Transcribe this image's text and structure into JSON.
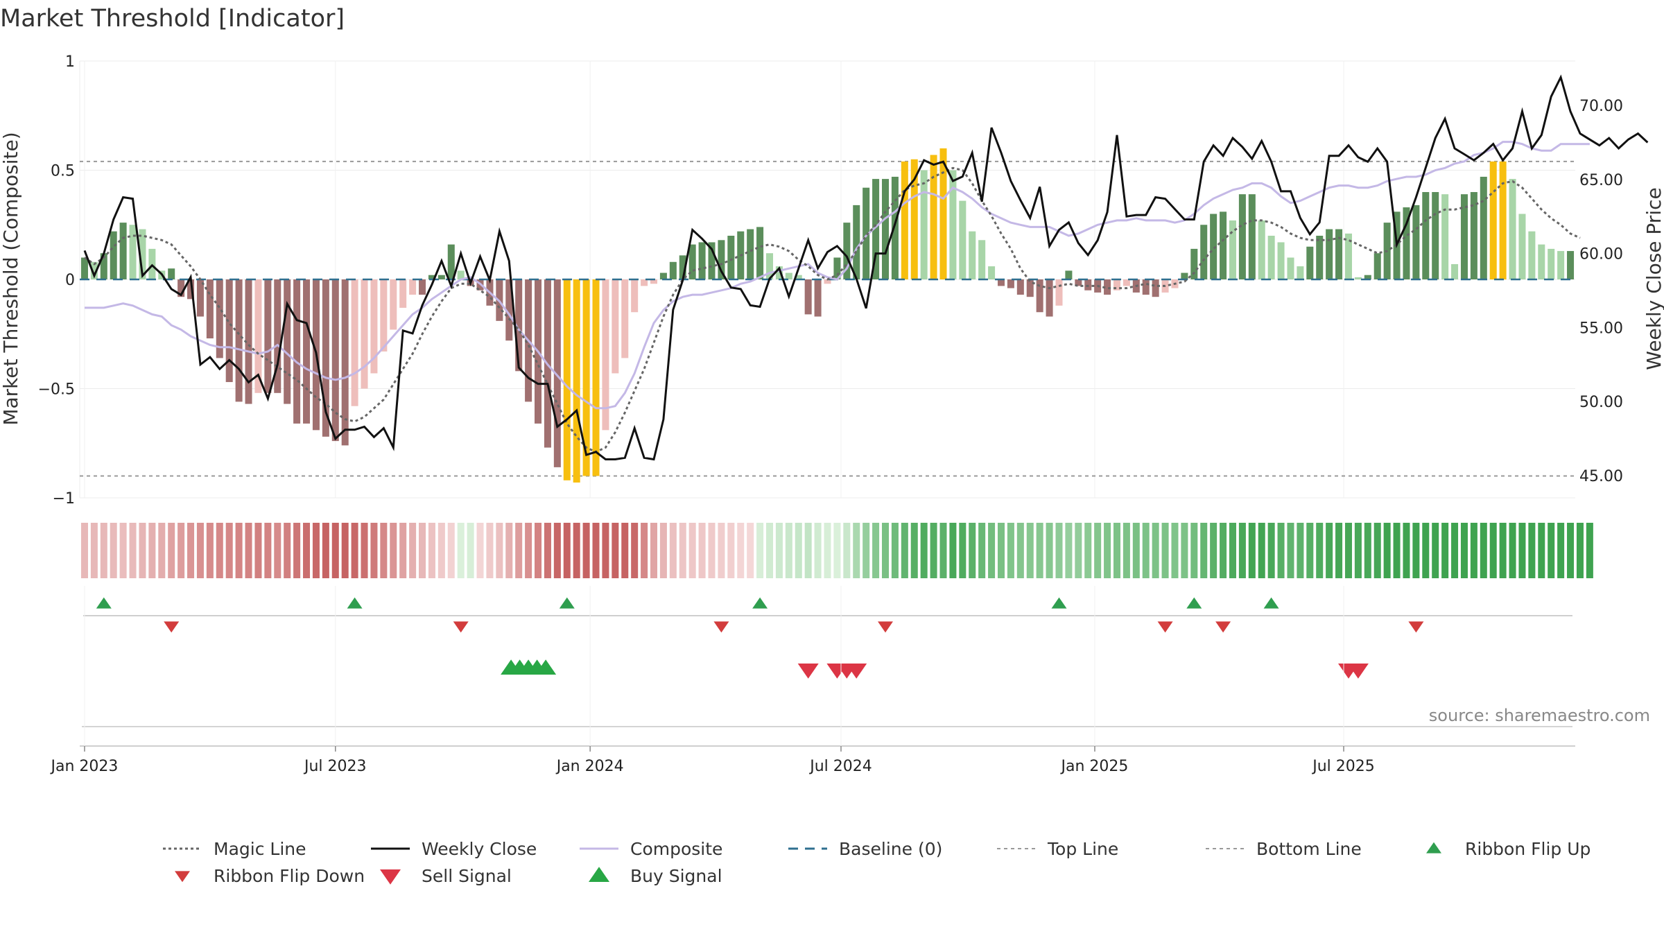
{
  "chart_data": {
    "type": "bar",
    "title": "Market Threshold [Indicator]",
    "ylabel_left": "Market Threshold (Composite)",
    "ylabel_right": "Weekly Close Price",
    "ylim_left": [
      -1,
      1
    ],
    "ylim_right": [
      43.5,
      73
    ],
    "left_ticks": [
      {
        "v": 1,
        "label": "1"
      },
      {
        "v": 0.5,
        "label": "0.5"
      },
      {
        "v": 0,
        "label": "0"
      },
      {
        "v": -0.5,
        "label": "−0.5"
      },
      {
        "v": -1,
        "label": "−1"
      }
    ],
    "right_ticks": [
      {
        "v": 70,
        "label": "70.00"
      },
      {
        "v": 65,
        "label": "65.00"
      },
      {
        "v": 60,
        "label": "60.00"
      },
      {
        "v": 55,
        "label": "55.00"
      },
      {
        "v": 50,
        "label": "50.00"
      },
      {
        "v": 45,
        "label": "45.00"
      }
    ],
    "x_ticks": [
      {
        "week": 0,
        "label": "Jan 2023"
      },
      {
        "week": 26,
        "label": "Jul 2023"
      },
      {
        "week": 52.4,
        "label": "Jan 2024"
      },
      {
        "week": 78.4,
        "label": "Jul 2024"
      },
      {
        "week": 104.7,
        "label": "Jan 2025"
      },
      {
        "week": 130.5,
        "label": "Jul 2025"
      }
    ],
    "top_line": 0.54,
    "bottom_line": -0.9,
    "composite_bars": [
      0.1,
      0.08,
      0.12,
      0.22,
      0.26,
      0.25,
      0.23,
      0.14,
      0.04,
      0.05,
      -0.08,
      -0.09,
      -0.17,
      -0.27,
      -0.36,
      -0.47,
      -0.56,
      -0.57,
      -0.52,
      -0.52,
      -0.52,
      -0.57,
      -0.66,
      -0.66,
      -0.69,
      -0.72,
      -0.74,
      -0.76,
      -0.58,
      -0.5,
      -0.43,
      -0.33,
      -0.23,
      -0.13,
      -0.07,
      -0.07,
      0.02,
      0.02,
      0.16,
      0.04,
      -0.03,
      -0.05,
      -0.12,
      -0.19,
      -0.28,
      -0.42,
      -0.56,
      -0.66,
      -0.77,
      -0.86,
      -0.92,
      -0.93,
      -0.9,
      -0.9,
      -0.69,
      -0.43,
      -0.36,
      -0.15,
      -0.03,
      -0.02,
      0.03,
      0.08,
      0.11,
      0.16,
      0.17,
      0.17,
      0.18,
      0.2,
      0.22,
      0.23,
      0.24,
      0.12,
      0.06,
      0.03,
      0.02,
      -0.16,
      -0.17,
      -0.02,
      0.1,
      0.26,
      0.34,
      0.42,
      0.46,
      0.46,
      0.47,
      0.54,
      0.55,
      0.5,
      0.57,
      0.6,
      0.5,
      0.36,
      0.22,
      0.18,
      0.06,
      -0.03,
      -0.04,
      -0.07,
      -0.08,
      -0.15,
      -0.17,
      -0.12,
      0.04,
      -0.03,
      -0.05,
      -0.06,
      -0.07,
      -0.05,
      -0.03,
      -0.06,
      -0.07,
      -0.08,
      -0.06,
      -0.04,
      0.03,
      0.14,
      0.25,
      0.3,
      0.31,
      0.27,
      0.39,
      0.39,
      0.27,
      0.2,
      0.17,
      0.1,
      0.06,
      0.15,
      0.2,
      0.23,
      0.23,
      0.21,
      0.01,
      0.02,
      0.12,
      0.26,
      0.31,
      0.33,
      0.34,
      0.4,
      0.4,
      0.39,
      0.07,
      0.39,
      0.4,
      0.47,
      0.54,
      0.54,
      0.46,
      0.3,
      0.22,
      0.16,
      0.14,
      0.13,
      0.13
    ],
    "weekly_close": [
      60.2,
      58.5,
      60,
      62.3,
      63.8,
      63.7,
      58.5,
      59.2,
      58.6,
      57.6,
      57.2,
      58.4,
      52.5,
      53,
      52.2,
      52.8,
      52.2,
      51.3,
      51.8,
      50.2,
      52.5,
      56.6,
      55.5,
      55.3,
      53.3,
      49.3,
      47.5,
      48.1,
      48.1,
      48.3,
      47.6,
      48.2,
      46.9,
      54.8,
      54.6,
      56.5,
      57.9,
      59.5,
      57.8,
      60,
      58,
      59.8,
      58.2,
      61.5,
      59.5,
      52.3,
      51.6,
      51.2,
      51.2,
      48.3,
      48.8,
      49.4,
      46.4,
      46.6,
      46.1,
      46.1,
      46.2,
      48.2,
      46.2,
      46.1,
      48.8,
      56.2,
      58.2,
      61.6,
      61,
      60.3,
      58.8,
      57.7,
      57.6,
      56.5,
      56.4,
      58.3,
      59,
      57.1,
      59,
      60.9,
      59,
      60.1,
      60.5,
      59.8,
      58.3,
      56.3,
      60,
      60,
      62,
      64.2,
      65,
      66.3,
      66,
      66.2,
      64.9,
      65.2,
      66.8,
      63.5,
      68.5,
      66.8,
      64.9,
      63.6,
      62.4,
      64.5,
      60.5,
      61.6,
      62.1,
      60.7,
      59.9,
      60.9,
      62.8,
      68,
      62.5,
      62.6,
      62.6,
      63.8,
      63.7,
      63,
      62.3,
      62.3,
      66.2,
      67.3,
      66.6,
      67.8,
      67.2,
      66.4,
      67.6,
      66.2,
      64.2,
      64.2,
      62.4,
      61.3,
      62.1,
      66.6,
      66.6,
      67.3,
      66.5,
      66.2,
      67.1,
      66.2,
      60.6,
      62,
      63.8,
      65.8,
      67.8,
      69.1,
      67.1,
      66.7,
      66.3,
      66.8,
      67.4,
      66.3,
      67.1,
      69.6,
      67.1,
      68,
      70.6,
      71.9,
      69.6,
      68.1,
      67.7,
      67.3,
      67.8,
      67.1,
      67.7,
      68.1,
      67.5
    ],
    "composite_line": [
      -0.13,
      -0.13,
      -0.13,
      -0.12,
      -0.11,
      -0.12,
      -0.14,
      -0.16,
      -0.17,
      -0.21,
      -0.23,
      -0.26,
      -0.28,
      -0.3,
      -0.31,
      -0.31,
      -0.32,
      -0.33,
      -0.34,
      -0.33,
      -0.3,
      -0.34,
      -0.38,
      -0.41,
      -0.43,
      -0.45,
      -0.46,
      -0.45,
      -0.43,
      -0.4,
      -0.36,
      -0.31,
      -0.26,
      -0.21,
      -0.16,
      -0.13,
      -0.09,
      -0.06,
      -0.03,
      0,
      0.01,
      -0.02,
      -0.06,
      -0.1,
      -0.16,
      -0.23,
      -0.28,
      -0.33,
      -0.39,
      -0.44,
      -0.49,
      -0.53,
      -0.56,
      -0.59,
      -0.59,
      -0.58,
      -0.52,
      -0.43,
      -0.31,
      -0.2,
      -0.14,
      -0.1,
      -0.08,
      -0.07,
      -0.07,
      -0.06,
      -0.05,
      -0.04,
      -0.02,
      -0.01,
      0.01,
      0.03,
      0.04,
      0.05,
      0.06,
      0.07,
      0.03,
      0.01,
      0,
      0.05,
      0.14,
      0.2,
      0.24,
      0.28,
      0.31,
      0.35,
      0.38,
      0.4,
      0.39,
      0.37,
      0.42,
      0.4,
      0.37,
      0.33,
      0.3,
      0.28,
      0.26,
      0.25,
      0.24,
      0.24,
      0.24,
      0.22,
      0.2,
      0.21,
      0.23,
      0.25,
      0.26,
      0.27,
      0.27,
      0.28,
      0.27,
      0.27,
      0.27,
      0.26,
      0.27,
      0.3,
      0.34,
      0.37,
      0.39,
      0.41,
      0.42,
      0.44,
      0.44,
      0.42,
      0.38,
      0.35,
      0.36,
      0.38,
      0.4,
      0.42,
      0.43,
      0.43,
      0.42,
      0.42,
      0.43,
      0.45,
      0.46,
      0.47,
      0.47,
      0.48,
      0.5,
      0.51,
      0.53,
      0.54,
      0.57,
      0.58,
      0.6,
      0.63,
      0.63,
      0.62,
      0.6,
      0.59,
      0.59,
      0.62,
      0.62,
      0.62,
      0.62
    ],
    "magic_line": [
      0.1,
      0.07,
      0.1,
      0.15,
      0.19,
      0.2,
      0.2,
      0.19,
      0.18,
      0.16,
      0.11,
      0.06,
      0,
      -0.07,
      -0.13,
      -0.2,
      -0.25,
      -0.3,
      -0.34,
      -0.37,
      -0.4,
      -0.43,
      -0.46,
      -0.5,
      -0.54,
      -0.57,
      -0.61,
      -0.64,
      -0.65,
      -0.63,
      -0.59,
      -0.55,
      -0.48,
      -0.41,
      -0.34,
      -0.25,
      -0.17,
      -0.1,
      -0.04,
      -0.02,
      -0.02,
      -0.05,
      -0.08,
      -0.13,
      -0.18,
      -0.23,
      -0.3,
      -0.39,
      -0.48,
      -0.57,
      -0.66,
      -0.72,
      -0.77,
      -0.79,
      -0.77,
      -0.7,
      -0.61,
      -0.51,
      -0.41,
      -0.29,
      -0.17,
      -0.07,
      0,
      0.04,
      0.05,
      0.06,
      0.07,
      0.09,
      0.11,
      0.13,
      0.15,
      0.16,
      0.15,
      0.13,
      0.09,
      0.06,
      0.02,
      0,
      0.02,
      0.07,
      0.13,
      0.2,
      0.25,
      0.31,
      0.36,
      0.41,
      0.43,
      0.44,
      0.47,
      0.49,
      0.51,
      0.5,
      0.44,
      0.36,
      0.29,
      0.21,
      0.14,
      0.05,
      -0.01,
      -0.03,
      -0.04,
      -0.03,
      -0.02,
      -0.03,
      -0.03,
      -0.03,
      -0.04,
      -0.04,
      -0.04,
      -0.03,
      -0.02,
      -0.03,
      -0.03,
      -0.02,
      -0.01,
      0.03,
      0.09,
      0.14,
      0.18,
      0.22,
      0.25,
      0.27,
      0.27,
      0.26,
      0.24,
      0.21,
      0.19,
      0.18,
      0.18,
      0.18,
      0.19,
      0.18,
      0.16,
      0.14,
      0.12,
      0.13,
      0.16,
      0.2,
      0.23,
      0.27,
      0.3,
      0.32,
      0.32,
      0.33,
      0.34,
      0.36,
      0.4,
      0.44,
      0.45,
      0.42,
      0.37,
      0.32,
      0.28,
      0.25,
      0.21,
      0.19
    ],
    "baseline": 0,
    "ribbon_flip_up_weeks": [
      2,
      28,
      50,
      70,
      101,
      115,
      123
    ],
    "ribbon_flip_down_weeks": [
      9,
      39,
      66,
      83,
      112,
      118,
      138
    ],
    "buy_signal_weeks": [
      44.2,
      45.1,
      46,
      46.9,
      47.8
    ],
    "sell_signal_weeks": [
      75,
      78,
      79,
      80,
      131,
      132
    ],
    "legend": [
      "Magic Line",
      "Weekly Close",
      "Composite",
      "Baseline (0)",
      "Top Line",
      "Bottom Line",
      "Ribbon Flip Up",
      "Ribbon Flip Down",
      "Sell Signal",
      "Buy Signal"
    ],
    "source": "source: sharemaestro.com",
    "colors": {
      "bar_pos_strong": "#5b8e5b",
      "bar_pos_weak": "#a8d5a8",
      "bar_neg_strong": "#a07070",
      "bar_neg_weak": "#eebebb",
      "bar_extreme": "#f7bf0f",
      "close": "#111111",
      "composite": "#c4b8e6",
      "magic": "#666666",
      "baseline": "#2f6f8f",
      "threshold": "#999999",
      "flip_up": "#2f9e4f",
      "flip_down": "#d23c3c",
      "sell": "#dc3545",
      "buy": "#28a745"
    }
  }
}
